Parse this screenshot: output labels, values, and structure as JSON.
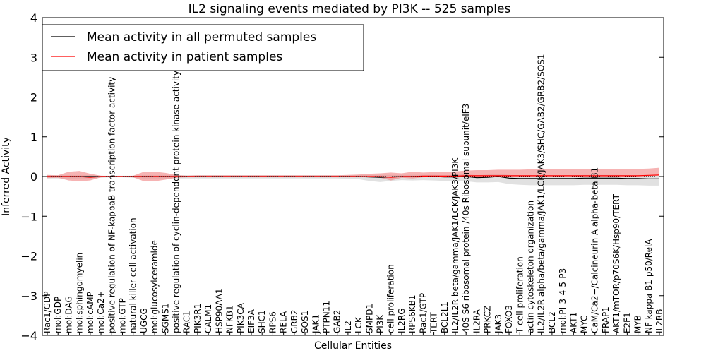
{
  "chart_data": {
    "type": "line",
    "title": "IL2 signaling events mediated by PI3K -- 525 samples",
    "xlabel": "Cellular Entities",
    "ylabel": "Inferred Activity",
    "ylim": [
      -4,
      4
    ],
    "yticks": [
      4,
      3,
      2,
      1,
      0,
      -1,
      -2,
      -3,
      -4
    ],
    "ytick_labels": [
      "4",
      "3",
      "2",
      "1",
      "0",
      "−1",
      "−2",
      "−3",
      "−4"
    ],
    "grid": false,
    "legend_position": "top-left",
    "categories": [
      "Rac1/GDP",
      "mol:GDP",
      "mol:DAG",
      "mol:sphingomyelin",
      "mol:cAMP",
      "mol:Ca2+",
      "positive regulation of NF-kappaB transcription factor activity",
      "mol:GTP",
      "natural killer cell activation",
      "UGCG",
      "mol:glucosylceramide",
      "SGMS1",
      "positive regulation of cyclin-dependent protein kinase activity",
      "RAC1",
      "PIK3R1",
      "CALM1",
      "HSP90AA1",
      "NFKB1",
      "PIK3CA",
      "EIF3A",
      "SHC1",
      "RPS6",
      "RELA",
      "GRB2",
      "SOS1",
      "JAK1",
      "PTPN11",
      "GAB2",
      "IL2",
      "LCK",
      "SMPD1",
      "PI3K",
      "cell proliferation",
      "IL2RG",
      "RPS6KB1",
      "Rac1/GTP",
      "TERT",
      "BCL2L1",
      "IL2/IL2R beta/gamma/JAK1/LCK/JAK3/PI3K",
      "40S S6 ribosomal protein /40s Ribosomal subunit/eIF3",
      "IL2RA",
      "PRKCZ",
      "JAK3",
      "FOXO3",
      "T cell proliferation",
      "actin cytoskeleton organization",
      "IL2/IL2R alpha/beta/gamma/JAK1/LCK/JAK3/SHC/GAB2/GRB2/SOS1",
      "BCL2",
      "mol:PI-3-4-5-P3",
      "AKT1",
      "MYC",
      "CaM/Ca2+/Calcineurin A alpha-beta B1",
      "FRAP1",
      "AKT1/mTOR/p70S6K/Hsp90/TERT",
      "E2F1",
      "MYB",
      "NF kappa B1 p50/RelA",
      "IL2RB"
    ],
    "series": [
      {
        "name": "Mean activity in all permuted samples",
        "color": "#000000",
        "band_color": "#c8c8c8",
        "values": [
          0,
          0,
          0,
          0,
          0,
          0,
          0,
          0,
          0,
          0,
          0,
          0,
          0,
          0,
          0,
          0,
          0,
          0,
          0,
          0,
          0,
          0,
          0,
          0,
          0,
          0,
          0,
          0,
          0,
          0,
          -0.01,
          -0.02,
          -0.01,
          0,
          0,
          0,
          0,
          -0.01,
          -0.01,
          0,
          -0.03,
          -0.02,
          0,
          -0.04,
          -0.05,
          -0.05,
          -0.05,
          -0.05,
          -0.05,
          -0.05,
          -0.04,
          -0.04,
          -0.04,
          -0.04,
          -0.05,
          -0.05,
          -0.06,
          -0.06
        ],
        "lower": [
          -0.05,
          -0.05,
          -0.05,
          -0.05,
          -0.05,
          -0.03,
          -0.02,
          -0.02,
          -0.03,
          -0.05,
          -0.05,
          -0.05,
          -0.05,
          -0.05,
          -0.05,
          -0.05,
          -0.05,
          -0.05,
          -0.05,
          -0.05,
          -0.05,
          -0.05,
          -0.05,
          -0.05,
          -0.05,
          -0.05,
          -0.05,
          -0.05,
          -0.06,
          -0.07,
          -0.1,
          -0.12,
          -0.1,
          -0.09,
          -0.1,
          -0.09,
          -0.1,
          -0.1,
          -0.11,
          -0.12,
          -0.12,
          -0.13,
          -0.14,
          -0.15,
          -0.16,
          -0.17,
          -0.17,
          -0.17,
          -0.17,
          -0.17,
          -0.17,
          -0.17,
          -0.17,
          -0.17,
          -0.17,
          -0.17,
          -0.17,
          -0.17
        ],
        "upper": [
          0.03,
          0.03,
          0.03,
          0.03,
          0.03,
          0.02,
          0.02,
          0.02,
          0.02,
          0.03,
          0.03,
          0.03,
          0.03,
          0.03,
          0.03,
          0.03,
          0.03,
          0.03,
          0.03,
          0.03,
          0.03,
          0.03,
          0.03,
          0.03,
          0.03,
          0.03,
          0.03,
          0.03,
          0.03,
          0.04,
          0.05,
          0.06,
          0.05,
          0.04,
          0.04,
          0.04,
          0.04,
          0.04,
          0.05,
          0.06,
          0.06,
          0.07,
          0.07,
          0.08,
          0.08,
          0.08,
          0.08,
          0.08,
          0.08,
          0.08,
          0.08,
          0.08,
          0.08,
          0.08,
          0.08,
          0.08,
          0.08,
          0.08
        ]
      },
      {
        "name": "Mean activity in patient samples",
        "color": "#ff0000",
        "band_color": "#f08080",
        "values": [
          0,
          0,
          0,
          0,
          -0.02,
          0,
          0,
          0,
          0,
          0,
          0,
          0,
          0,
          0,
          0,
          0,
          0,
          0,
          0,
          0,
          0,
          0,
          0,
          0,
          0,
          0,
          0,
          0,
          0,
          0,
          0,
          0,
          -0.02,
          0,
          0,
          0.01,
          0.01,
          0.01,
          0.01,
          0.02,
          0.02,
          0.02,
          0.02,
          0.02,
          0.02,
          0.02,
          0.02,
          0.02,
          0.02,
          0.02,
          0.02,
          0.02,
          0.02,
          0.02,
          0.02,
          0.02,
          0.03,
          0.04
        ],
        "lower": [
          -0.04,
          -0.03,
          -0.1,
          -0.12,
          -0.08,
          -0.02,
          -0.01,
          -0.01,
          -0.02,
          -0.12,
          -0.12,
          -0.08,
          -0.03,
          -0.02,
          -0.02,
          -0.02,
          -0.02,
          -0.02,
          -0.02,
          -0.02,
          -0.02,
          -0.02,
          -0.02,
          -0.02,
          -0.02,
          -0.02,
          -0.02,
          -0.02,
          -0.02,
          -0.02,
          -0.02,
          -0.03,
          -0.08,
          -0.03,
          -0.05,
          -0.03,
          -0.02,
          -0.03,
          -0.03,
          -0.02,
          -0.02,
          -0.02,
          -0.02,
          -0.02,
          -0.02,
          -0.02,
          -0.02,
          -0.02,
          -0.02,
          -0.02,
          -0.02,
          -0.02,
          -0.02,
          -0.02,
          -0.02,
          -0.02,
          -0.02,
          -0.02
        ],
        "upper": [
          0.04,
          0.03,
          0.12,
          0.14,
          0.09,
          0.02,
          0.01,
          0.01,
          0.02,
          0.12,
          0.12,
          0.09,
          0.04,
          0.02,
          0.03,
          0.03,
          0.03,
          0.03,
          0.03,
          0.03,
          0.03,
          0.03,
          0.03,
          0.03,
          0.03,
          0.03,
          0.03,
          0.03,
          0.04,
          0.05,
          0.07,
          0.08,
          0.12,
          0.08,
          0.12,
          0.09,
          0.1,
          0.11,
          0.12,
          0.13,
          0.14,
          0.14,
          0.15,
          0.15,
          0.15,
          0.16,
          0.16,
          0.16,
          0.16,
          0.16,
          0.16,
          0.17,
          0.17,
          0.17,
          0.17,
          0.17,
          0.17,
          0.18
        ]
      }
    ]
  }
}
